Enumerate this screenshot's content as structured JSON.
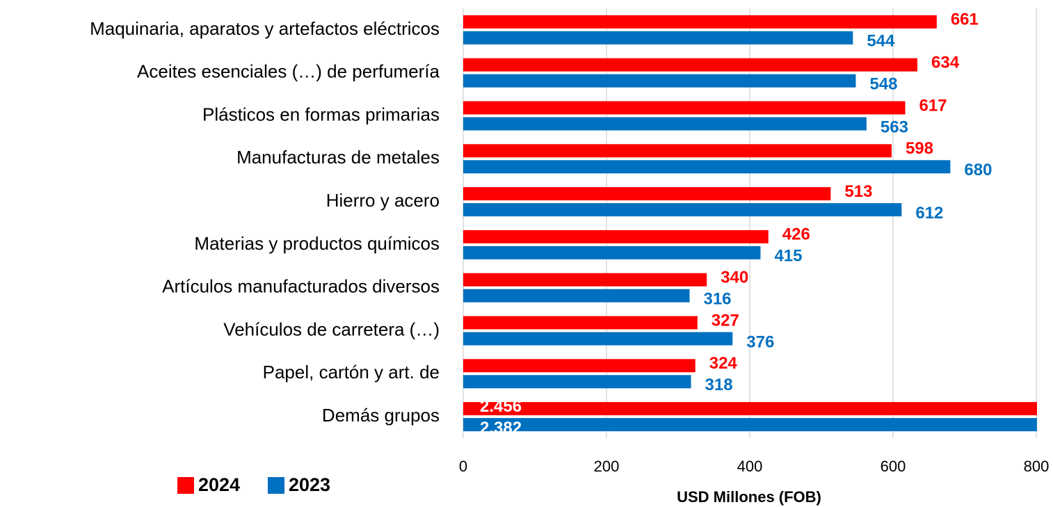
{
  "chart_data": {
    "type": "barh",
    "categories": [
      "Maquinaria, aparatos y artefactos eléctricos",
      "Aceites esenciales (…) de perfumería",
      "Plásticos en formas primarias",
      "Manufacturas de metales",
      "Hierro y acero",
      "Materias y productos químicos",
      "Artículos manufacturados diversos",
      "Vehículos de carretera (…)",
      "Papel, cartón y art. de",
      "Demás grupos"
    ],
    "series": [
      {
        "name": "2024",
        "color": "#ff0000",
        "values": [
          661,
          634,
          617,
          598,
          513,
          426,
          340,
          327,
          324,
          2456
        ],
        "value_labels": [
          "661",
          "634",
          "617",
          "598",
          "513",
          "426",
          "340",
          "327",
          "324",
          "2.456"
        ]
      },
      {
        "name": "2023",
        "color": "#0070c0",
        "values": [
          544,
          548,
          563,
          680,
          612,
          415,
          316,
          376,
          318,
          2382
        ],
        "value_labels": [
          "544",
          "548",
          "563",
          "680",
          "612",
          "415",
          "316",
          "376",
          "318",
          "2.382"
        ]
      }
    ],
    "xlabel": "USD Millones (FOB)",
    "xlim": [
      0,
      800
    ],
    "xticks": [
      0,
      200,
      400,
      600,
      800
    ],
    "grid": true,
    "legend": "bottom-left"
  }
}
